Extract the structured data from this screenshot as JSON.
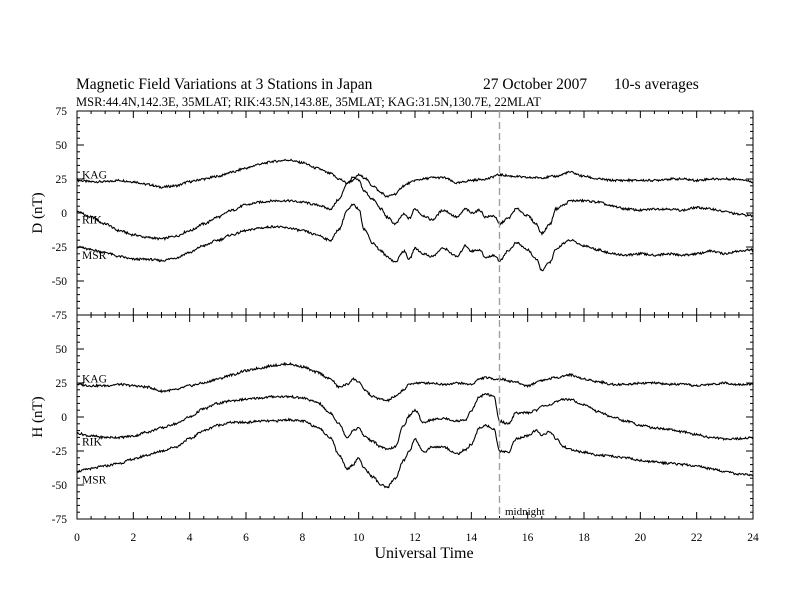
{
  "header": {
    "title": "Magnetic Field Variations at 3 Stations in Japan",
    "date": "27 October 2007",
    "averaging": "10-s averages",
    "stations_line": "MSR:44.4N,142.3E, 35MLAT;  RIK:43.5N,143.8E, 35MLAT;  KAG:31.5N,130.7E, 22MLAT"
  },
  "chart_data": {
    "type": "line",
    "title": "Magnetic Field Variations at 3 Stations in Japan",
    "xlabel": "Universal Time",
    "xlim": [
      0,
      24
    ],
    "xticks": [
      0,
      2,
      4,
      6,
      8,
      10,
      12,
      14,
      16,
      18,
      20,
      22,
      24
    ],
    "xticklabels": [
      "0",
      "2",
      "4",
      "6",
      "8",
      "10",
      "12",
      "14",
      "16",
      "18",
      "20",
      "22",
      "24"
    ],
    "grid": false,
    "annotation": {
      "text": "midnight",
      "x": 15
    },
    "panels": [
      {
        "ylabel": "D (nT)",
        "ylim": [
          -75,
          75
        ],
        "yticks": [
          75,
          50,
          25,
          0,
          -25,
          -50,
          -75
        ],
        "yticklabels": [
          "75",
          "50",
          "25",
          "0",
          "-25",
          "-50",
          "-75"
        ],
        "series": [
          {
            "name": "KAG",
            "x": [
              0,
              0.5,
              1,
              1.5,
              2,
              2.5,
              3,
              3.5,
              4,
              4.5,
              5,
              5.5,
              6,
              6.5,
              7,
              7.5,
              8,
              8.5,
              9,
              9.3,
              9.6,
              9.8,
              10,
              10.2,
              10.5,
              10.8,
              11,
              11.3,
              11.6,
              11.8,
              12,
              12.3,
              12.6,
              13,
              13.5,
              14,
              14.5,
              15,
              15.5,
              16,
              16.5,
              17,
              17.5,
              18,
              18.5,
              19,
              19.5,
              20,
              20.5,
              21,
              21.5,
              22,
              22.5,
              23,
              23.5,
              24
            ],
            "y": [
              24,
              23,
              23,
              24,
              23,
              21,
              19,
              20,
              23,
              25,
              27,
              30,
              33,
              36,
              38,
              39,
              37,
              33,
              29,
              25,
              22,
              24,
              28,
              26,
              20,
              15,
              12,
              14,
              20,
              22,
              24,
              25,
              26,
              26,
              22,
              24,
              25,
              28,
              27,
              26,
              26,
              27,
              30,
              27,
              25,
              24,
              24,
              24,
              24,
              25,
              25,
              24,
              25,
              25,
              25,
              23
            ]
          },
          {
            "name": "RIK",
            "x": [
              0,
              0.5,
              1,
              1.5,
              2,
              2.5,
              3,
              3.5,
              4,
              4.5,
              5,
              5.5,
              6,
              6.5,
              7,
              7.5,
              8,
              8.5,
              9,
              9.3,
              9.6,
              9.8,
              10,
              10.2,
              10.5,
              10.8,
              11,
              11.3,
              11.6,
              11.8,
              12,
              12.3,
              12.6,
              13,
              13.5,
              13.8,
              14,
              14.3,
              14.5,
              14.8,
              15,
              15.3,
              15.6,
              16,
              16.3,
              16.5,
              16.8,
              17,
              17.3,
              17.5,
              18,
              18.5,
              19,
              19.5,
              20,
              20.5,
              21,
              21.5,
              22,
              22.5,
              23,
              23.5,
              24
            ],
            "y": [
              1,
              -3,
              -8,
              -13,
              -16,
              -18,
              -19,
              -17,
              -13,
              -8,
              -3,
              2,
              6,
              8,
              9,
              9,
              8,
              6,
              3,
              10,
              22,
              26,
              24,
              16,
              10,
              3,
              -3,
              -8,
              -1,
              -4,
              3,
              -2,
              -5,
              2,
              -3,
              3,
              0,
              2,
              -3,
              -2,
              -8,
              -4,
              3,
              -2,
              -8,
              -15,
              -8,
              3,
              6,
              9,
              9,
              8,
              5,
              3,
              2,
              3,
              3,
              2,
              4,
              3,
              1,
              -1,
              -2
            ]
          },
          {
            "name": "MSR",
            "x": [
              0,
              0.5,
              1,
              1.5,
              2,
              2.5,
              3,
              3.5,
              4,
              4.5,
              5,
              5.5,
              6,
              6.5,
              7,
              7.5,
              8,
              8.5,
              9,
              9.3,
              9.6,
              9.8,
              10,
              10.2,
              10.5,
              10.8,
              11,
              11.3,
              11.6,
              11.8,
              12,
              12.3,
              12.6,
              13,
              13.5,
              13.8,
              14,
              14.3,
              14.5,
              14.8,
              15,
              15.3,
              15.6,
              16,
              16.3,
              16.5,
              16.8,
              17,
              17.3,
              17.5,
              18,
              18.5,
              19,
              19.5,
              20,
              20.5,
              21,
              21.5,
              22,
              22.5,
              23,
              23.5,
              24
            ],
            "y": [
              -25,
              -27,
              -29,
              -32,
              -34,
              -34,
              -35,
              -33,
              -29,
              -24,
              -20,
              -16,
              -13,
              -11,
              -10,
              -11,
              -13,
              -16,
              -20,
              -12,
              2,
              6,
              3,
              -12,
              -22,
              -28,
              -32,
              -36,
              -28,
              -34,
              -26,
              -30,
              -32,
              -26,
              -32,
              -24,
              -28,
              -27,
              -33,
              -31,
              -35,
              -28,
              -22,
              -27,
              -34,
              -42,
              -36,
              -27,
              -22,
              -20,
              -24,
              -27,
              -30,
              -31,
              -30,
              -31,
              -30,
              -31,
              -30,
              -28,
              -30,
              -28,
              -27
            ]
          }
        ]
      },
      {
        "ylabel": "H (nT)",
        "ylim": [
          -75,
          75
        ],
        "yticks": [
          75,
          50,
          25,
          0,
          -25,
          -50,
          -75
        ],
        "yticklabels": [
          "75",
          "50",
          "25",
          "0",
          "-25",
          "-50",
          "-75"
        ],
        "series": [
          {
            "name": "KAG",
            "x": [
              0,
              0.5,
              1,
              1.5,
              2,
              2.5,
              3,
              3.5,
              4,
              4.5,
              5,
              5.5,
              6,
              6.5,
              7,
              7.5,
              8,
              8.5,
              9,
              9.3,
              9.6,
              9.8,
              10,
              10.2,
              10.5,
              10.8,
              11,
              11.3,
              11.6,
              11.8,
              12,
              12.3,
              12.6,
              13,
              13.5,
              14,
              14.3,
              14.5,
              14.8,
              15,
              15.5,
              16,
              16.5,
              17,
              17.5,
              18,
              18.5,
              19,
              19.5,
              20,
              20.5,
              21,
              21.5,
              22,
              22.5,
              23,
              23.5,
              24
            ],
            "y": [
              24,
              23,
              23,
              24,
              23,
              22,
              19,
              20,
              23,
              25,
              28,
              31,
              34,
              36,
              38,
              39,
              37,
              33,
              28,
              22,
              24,
              28,
              26,
              20,
              15,
              13,
              12,
              15,
              20,
              24,
              25,
              25,
              25,
              24,
              25,
              24,
              28,
              29,
              28,
              28,
              26,
              23,
              27,
              29,
              31,
              28,
              26,
              24,
              24,
              25,
              25,
              24,
              24,
              23,
              24,
              25,
              24,
              24
            ]
          },
          {
            "name": "RIK",
            "x": [
              0,
              0.5,
              1,
              1.5,
              2,
              2.5,
              3,
              3.5,
              4,
              4.5,
              5,
              5.5,
              6,
              6.5,
              7,
              7.5,
              8,
              8.5,
              9,
              9.3,
              9.6,
              9.8,
              10,
              10.2,
              10.5,
              10.8,
              11,
              11.3,
              11.6,
              11.8,
              12,
              12.3,
              12.6,
              13,
              13.5,
              13.8,
              14,
              14.3,
              14.5,
              14.8,
              15,
              15.3,
              15.6,
              16,
              16.3,
              16.5,
              16.8,
              17,
              17.3,
              17.5,
              18,
              18.5,
              19,
              19.5,
              20,
              20.5,
              21,
              21.5,
              22,
              22.5,
              23,
              23.5,
              24
            ],
            "y": [
              -12,
              -14,
              -15,
              -15,
              -14,
              -11,
              -8,
              -5,
              0,
              6,
              10,
              12,
              13,
              14,
              15,
              15,
              14,
              11,
              3,
              -5,
              -15,
              -10,
              -8,
              -14,
              -18,
              -22,
              -24,
              -22,
              -6,
              1,
              5,
              -4,
              -2,
              -1,
              -3,
              -2,
              5,
              15,
              17,
              15,
              -3,
              -5,
              3,
              3,
              5,
              8,
              9,
              11,
              13,
              13,
              9,
              4,
              0,
              -3,
              -6,
              -8,
              -9,
              -11,
              -13,
              -15,
              -16,
              -16,
              -15
            ]
          },
          {
            "name": "MSR",
            "x": [
              0,
              0.5,
              1,
              1.5,
              2,
              2.5,
              3,
              3.5,
              4,
              4.5,
              5,
              5.5,
              6,
              6.5,
              7,
              7.5,
              8,
              8.5,
              9,
              9.3,
              9.6,
              9.8,
              10,
              10.2,
              10.5,
              10.8,
              11,
              11.3,
              11.6,
              11.8,
              12,
              12.3,
              12.6,
              13,
              13.5,
              13.8,
              14,
              14.3,
              14.5,
              14.8,
              15,
              15.3,
              15.6,
              16,
              16.3,
              16.5,
              16.8,
              17,
              17.3,
              17.5,
              18,
              18.5,
              19,
              19.5,
              20,
              20.5,
              21,
              21.5,
              22,
              22.5,
              23,
              23.5,
              24
            ],
            "y": [
              -40,
              -38,
              -36,
              -34,
              -31,
              -28,
              -25,
              -22,
              -16,
              -10,
              -6,
              -4,
              -4,
              -3,
              -3,
              -2,
              -3,
              -7,
              -15,
              -28,
              -38,
              -35,
              -30,
              -38,
              -44,
              -50,
              -52,
              -45,
              -32,
              -25,
              -16,
              -26,
              -22,
              -22,
              -27,
              -24,
              -20,
              -8,
              -6,
              -9,
              -25,
              -26,
              -16,
              -14,
              -10,
              -13,
              -11,
              -16,
              -22,
              -24,
              -26,
              -28,
              -29,
              -30,
              -32,
              -33,
              -34,
              -35,
              -36,
              -38,
              -40,
              -42,
              -43
            ]
          }
        ]
      }
    ]
  }
}
